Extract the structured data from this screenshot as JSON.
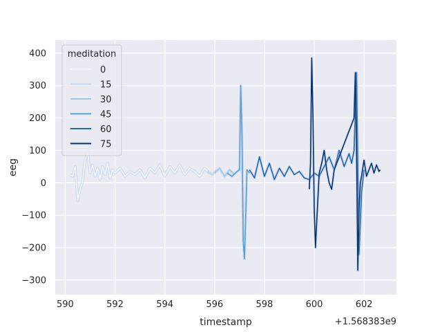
{
  "chart_data": {
    "type": "line",
    "xlabel": "timestamp",
    "ylabel": "eeg",
    "offset_label": "+1.568383e9",
    "xlim": [
      589.6,
      603.3
    ],
    "ylim": [
      -345,
      440
    ],
    "xticks": [
      590,
      592,
      594,
      596,
      598,
      600,
      602
    ],
    "xtick_labels": [
      "590",
      "592",
      "594",
      "596",
      "598",
      "600",
      "602"
    ],
    "yticks": [
      400,
      300,
      200,
      100,
      0,
      -100,
      -200,
      -300
    ],
    "ytick_labels": [
      "400",
      "300",
      "200",
      "100",
      "0",
      "−100",
      "−200",
      "−300"
    ],
    "grid": true,
    "legend": {
      "title": "meditation",
      "placement": "top-left",
      "entries": [
        "0",
        "15",
        "30",
        "45",
        "60",
        "75"
      ]
    },
    "series": [
      {
        "name": "0",
        "color": "#f0f5fc",
        "x": [
          590.2,
          590.3,
          590.4,
          590.5,
          590.6,
          590.7,
          590.8,
          590.9,
          591.0,
          591.1,
          591.2,
          591.3,
          591.4,
          591.5,
          591.6,
          591.7,
          591.8,
          591.9,
          592.0,
          592.2,
          592.4,
          592.6,
          592.8,
          593.0,
          593.2,
          593.4,
          593.6,
          593.8,
          594.0,
          594.2,
          594.4,
          594.6,
          594.8,
          595.0,
          595.2,
          595.4,
          595.6,
          595.8
        ],
        "values": [
          25,
          20,
          50,
          -55,
          -20,
          5,
          70,
          95,
          30,
          55,
          20,
          45,
          10,
          50,
          25,
          60,
          15,
          40,
          30,
          45,
          20,
          35,
          25,
          40,
          15,
          45,
          30,
          55,
          20,
          50,
          30,
          55,
          25,
          45,
          35,
          20,
          45,
          30
        ]
      },
      {
        "name": "15",
        "color": "#c6dbef",
        "x": [
          595.7,
          595.9,
          596.1
        ],
        "values": [
          35,
          25,
          40
        ]
      },
      {
        "name": "30",
        "color": "#9ecae1",
        "x": [
          596.0,
          596.2,
          596.4,
          596.6,
          596.8
        ],
        "values": [
          30,
          45,
          20,
          40,
          25
        ]
      },
      {
        "name": "45",
        "color": "#5a9fd4",
        "x": [
          596.5,
          596.7,
          596.9,
          597.0,
          597.05,
          597.1,
          597.15,
          597.2,
          597.25,
          597.3,
          597.4
        ],
        "values": [
          30,
          20,
          35,
          40,
          300,
          150,
          -180,
          -235,
          -100,
          40,
          30
        ]
      },
      {
        "name": "60",
        "color": "#2166ac",
        "x": [
          597.4,
          597.6,
          597.8,
          598.0,
          598.2,
          598.4,
          598.6,
          598.8,
          599.0,
          599.2,
          599.4,
          599.6,
          599.8,
          600.0,
          600.2,
          600.4,
          600.6,
          600.8,
          601.0,
          601.2,
          601.4,
          601.5,
          601.6,
          601.7,
          601.75,
          601.8,
          601.9,
          602.0
        ],
        "values": [
          40,
          15,
          80,
          20,
          60,
          10,
          45,
          20,
          50,
          25,
          35,
          15,
          10,
          30,
          20,
          50,
          80,
          40,
          100,
          50,
          90,
          60,
          100,
          340,
          60,
          -220,
          -30,
          40
        ]
      },
      {
        "name": "75",
        "color": "#08306b",
        "x": [
          599.8,
          599.85,
          599.9,
          599.95,
          600.0,
          600.05,
          600.1,
          600.2,
          600.3,
          600.4,
          600.5,
          600.6,
          600.7,
          600.8,
          601.6,
          601.65,
          601.7,
          601.75,
          601.8,
          601.85,
          601.9,
          602.0,
          602.1,
          602.2,
          602.3,
          602.4,
          602.5,
          602.6,
          602.65
        ],
        "values": [
          -20,
          60,
          385,
          200,
          -80,
          -200,
          -120,
          30,
          60,
          100,
          40,
          0,
          -20,
          40,
          200,
          340,
          100,
          -270,
          -80,
          0,
          20,
          70,
          20,
          40,
          60,
          30,
          55,
          35,
          40
        ]
      }
    ]
  }
}
